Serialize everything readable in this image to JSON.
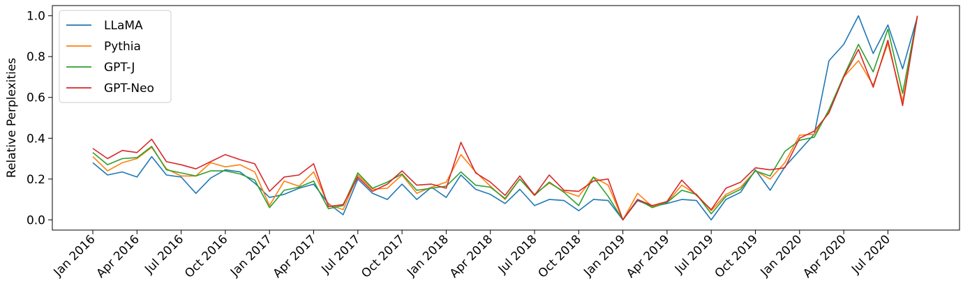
{
  "chart_data": {
    "type": "line",
    "title": "",
    "xlabel": "",
    "ylabel": "Relative Perplexities",
    "ylim": [
      -0.05,
      1.05
    ],
    "yticks": [
      "0.0",
      "0.2",
      "0.4",
      "0.6",
      "0.8",
      "1.0"
    ],
    "grid": false,
    "legend_position": "top-left",
    "x": [
      "Jan 2016",
      "Feb 2016",
      "Mar 2016",
      "Apr 2016",
      "May 2016",
      "Jun 2016",
      "Jul 2016",
      "Aug 2016",
      "Sep 2016",
      "Oct 2016",
      "Nov 2016",
      "Dec 2016",
      "Jan 2017",
      "Feb 2017",
      "Mar 2017",
      "Apr 2017",
      "May 2017",
      "Jun 2017",
      "Jul 2017",
      "Aug 2017",
      "Sep 2017",
      "Oct 2017",
      "Nov 2017",
      "Dec 2017",
      "Jan 2018",
      "Feb 2018",
      "Mar 2018",
      "Apr 2018",
      "May 2018",
      "Jun 2018",
      "Jul 2018",
      "Aug 2018",
      "Sep 2018",
      "Oct 2018",
      "Nov 2018",
      "Dec 2018",
      "Jan 2019",
      "Feb 2019",
      "Mar 2019",
      "Apr 2019",
      "May 2019",
      "Jun 2019",
      "Jul 2019",
      "Aug 2019",
      "Sep 2019",
      "Oct 2019",
      "Nov 2019",
      "Dec 2019",
      "Jan 2020",
      "Feb 2020",
      "Mar 2020",
      "Apr 2020",
      "May 2020",
      "Jun 2020",
      "Jul 2020",
      "Aug 2020",
      "Sep 2020"
    ],
    "xtick_labels": [
      "Jan 2016",
      "Apr 2016",
      "Jul 2016",
      "Oct 2016",
      "Jan 2017",
      "Apr 2017",
      "Jul 2017",
      "Oct 2017",
      "Jan 2018",
      "Apr 2018",
      "Jul 2018",
      "Oct 2018",
      "Jan 2019",
      "Apr 2019",
      "Jul 2019",
      "Oct 2019",
      "Jan 2020",
      "Apr 2020",
      "Jul 2020"
    ],
    "series": [
      {
        "name": "LLaMA",
        "color": "#1f77b4",
        "values": [
          0.28,
          0.22,
          0.235,
          0.21,
          0.31,
          0.22,
          0.21,
          0.13,
          0.205,
          0.245,
          0.235,
          0.18,
          0.11,
          0.125,
          0.155,
          0.175,
          0.08,
          0.025,
          0.2,
          0.13,
          0.1,
          0.175,
          0.1,
          0.16,
          0.11,
          0.22,
          0.15,
          0.125,
          0.08,
          0.15,
          0.07,
          0.1,
          0.095,
          0.045,
          0.1,
          0.095,
          0.0,
          0.095,
          0.065,
          0.08,
          0.1,
          0.095,
          0.0,
          0.1,
          0.135,
          0.245,
          0.145,
          0.26,
          0.34,
          0.42,
          0.78,
          0.86,
          1.0,
          0.815,
          0.955,
          0.74,
          0.995
        ]
      },
      {
        "name": "Pythia",
        "color": "#ff7f0e",
        "values": [
          0.31,
          0.24,
          0.28,
          0.3,
          0.355,
          0.25,
          0.215,
          0.215,
          0.28,
          0.26,
          0.27,
          0.235,
          0.07,
          0.19,
          0.165,
          0.235,
          0.075,
          0.05,
          0.22,
          0.15,
          0.155,
          0.22,
          0.13,
          0.16,
          0.185,
          0.32,
          0.235,
          0.165,
          0.1,
          0.2,
          0.125,
          0.18,
          0.14,
          0.115,
          0.21,
          0.17,
          0.0,
          0.13,
          0.065,
          0.085,
          0.17,
          0.125,
          0.045,
          0.125,
          0.16,
          0.24,
          0.2,
          0.28,
          0.415,
          0.42,
          0.53,
          0.7,
          0.78,
          0.66,
          0.865,
          0.58,
          0.995
        ]
      },
      {
        "name": "GPT-J",
        "color": "#2ca02c",
        "values": [
          0.33,
          0.27,
          0.3,
          0.305,
          0.36,
          0.245,
          0.23,
          0.215,
          0.24,
          0.24,
          0.225,
          0.195,
          0.06,
          0.145,
          0.16,
          0.19,
          0.055,
          0.07,
          0.23,
          0.155,
          0.185,
          0.225,
          0.145,
          0.155,
          0.165,
          0.235,
          0.17,
          0.16,
          0.105,
          0.2,
          0.12,
          0.185,
          0.135,
          0.07,
          0.21,
          0.115,
          0.0,
          0.1,
          0.06,
          0.085,
          0.145,
          0.125,
          0.03,
          0.115,
          0.15,
          0.24,
          0.215,
          0.335,
          0.39,
          0.405,
          0.54,
          0.705,
          0.86,
          0.725,
          0.935,
          0.62,
          1.0
        ]
      },
      {
        "name": "GPT-Neo",
        "color": "#d62728",
        "values": [
          0.35,
          0.3,
          0.34,
          0.33,
          0.395,
          0.285,
          0.27,
          0.25,
          0.285,
          0.32,
          0.295,
          0.275,
          0.14,
          0.21,
          0.22,
          0.275,
          0.065,
          0.075,
          0.21,
          0.14,
          0.175,
          0.24,
          0.17,
          0.175,
          0.155,
          0.38,
          0.23,
          0.185,
          0.12,
          0.215,
          0.12,
          0.22,
          0.145,
          0.14,
          0.19,
          0.2,
          0.0,
          0.1,
          0.07,
          0.09,
          0.195,
          0.12,
          0.05,
          0.155,
          0.185,
          0.255,
          0.245,
          0.255,
          0.4,
          0.435,
          0.525,
          0.7,
          0.835,
          0.65,
          0.88,
          0.56,
          1.0
        ]
      }
    ]
  }
}
